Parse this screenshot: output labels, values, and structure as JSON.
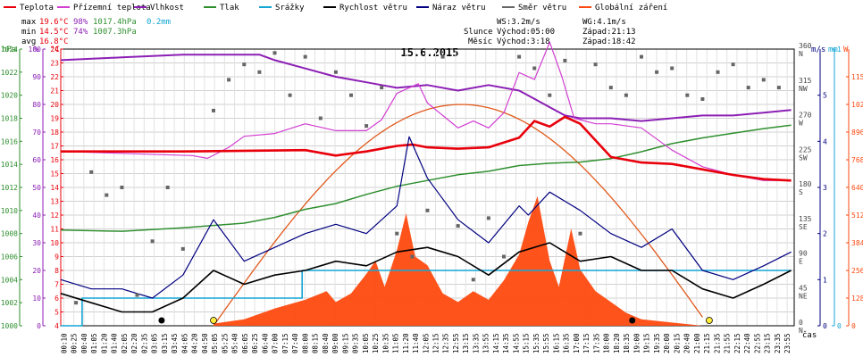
{
  "legend": [
    {
      "label": "Teplota",
      "color": "#e8000b"
    },
    {
      "label": "Přízemní teplota",
      "color": "#d23ed2"
    },
    {
      "label": "Vlhkost",
      "color": "#8c1fb5"
    },
    {
      "label": "Tlak",
      "color": "#2f8f2f"
    },
    {
      "label": "Srážky",
      "color": "#14a6d4"
    },
    {
      "label": "Rychlost větru",
      "color": "#000000"
    },
    {
      "label": "Náraz větru",
      "color": "#000080"
    },
    {
      "label": "Směr větru",
      "color": "#666666"
    },
    {
      "label": "Globální záření",
      "color": "#ff4a10"
    }
  ],
  "stats": {
    "max": {
      "label": "max",
      "temp": "19.6°C",
      "hum": "98%",
      "press": "1017.4hPa",
      "rain": "0.2mm"
    },
    "min": {
      "label": "min",
      "temp": "14.5°C",
      "hum": "74%",
      "press": "1007.3hPa"
    },
    "avg": {
      "label": "avg",
      "temp": "16.8°C"
    }
  },
  "wind_info": {
    "ws": "WS:3.2m/s",
    "wg": "WG:4.1m/s"
  },
  "sun_info": {
    "label": "Slunce",
    "rise": "Východ:05:00",
    "set": "Západ:21:13"
  },
  "moon_info": {
    "label": "Měsíc",
    "rise": "Východ:3:18",
    "set": "Západ:18:42"
  },
  "title": "15.6.2015",
  "axis_units": {
    "hpa": "hPa",
    "pct": "%",
    "degc": "°C",
    "ms": "m/s",
    "mm": "mm",
    "w": "W",
    "cas": "čas"
  },
  "chart_data": {
    "type": "line",
    "title": "15.6.2015",
    "x_labels": [
      "00:10",
      "00:25",
      "00:40",
      "01:05",
      "01:20",
      "01:40",
      "02:05",
      "02:20",
      "02:35",
      "03:05",
      "03:15",
      "03:45",
      "04:05",
      "04:20",
      "04:50",
      "05:05",
      "05:25",
      "05:40",
      "06:05",
      "06:25",
      "06:40",
      "07:00",
      "07:15",
      "07:40",
      "08:00",
      "08:15",
      "08:40",
      "09:00",
      "09:15",
      "09:35",
      "10:05",
      "10:25",
      "10:35",
      "11:05",
      "11:20",
      "11:40",
      "12:05",
      "12:15",
      "12:35",
      "12:55",
      "13:15",
      "13:35",
      "13:55",
      "14:15",
      "14:35",
      "14:55",
      "15:15",
      "15:35",
      "15:55",
      "16:15",
      "16:35",
      "17:00",
      "17:15",
      "17:35",
      "18:00",
      "18:20",
      "18:35",
      "19:00",
      "19:15",
      "19:35",
      "20:00",
      "20:15",
      "20:40",
      "21:00",
      "21:15",
      "21:35",
      "21:55",
      "22:15",
      "22:40",
      "22:55",
      "23:15",
      "23:35",
      "23:55"
    ],
    "axes": {
      "pressure_hpa": {
        "ylim": [
          1000,
          1024
        ],
        "ticks": [
          1000,
          1002,
          1004,
          1006,
          1008,
          1010,
          1012,
          1014,
          1016,
          1018,
          1020,
          1022,
          1024
        ]
      },
      "humidity_pct": {
        "ylim": [
          0,
          100
        ],
        "ticks": [
          0,
          10,
          20,
          30,
          40,
          50,
          60,
          70,
          80,
          90,
          100
        ]
      },
      "temperature_c": {
        "ylim": [
          4,
          24
        ],
        "ticks": [
          4,
          5,
          6,
          7,
          8,
          9,
          10,
          11,
          12,
          13,
          14,
          15,
          16,
          17,
          18,
          19,
          20,
          21,
          22,
          23,
          24
        ]
      },
      "wind_ms": {
        "ylim": [
          0,
          6
        ],
        "ticks": [
          0,
          1,
          2,
          3,
          4,
          5
        ]
      },
      "rain_mm": {
        "ylim": [
          0,
          1
        ],
        "ticks": [
          0,
          1
        ]
      },
      "radiation_w": {
        "ylim": [
          0,
          1280
        ],
        "ticks": [
          0,
          128,
          256,
          384,
          512,
          640,
          768,
          896,
          1024,
          1152
        ]
      },
      "wind_dir": {
        "ylim": [
          0,
          360
        ],
        "ticks": [
          0,
          45,
          90,
          135,
          180,
          225,
          270,
          315,
          360
        ],
        "tick_labels": [
          "N",
          "NE",
          "E",
          "SE",
          "S",
          "SW",
          "W",
          "NW",
          "N"
        ]
      }
    },
    "series": [
      {
        "name": "Teplota",
        "unit": "°C",
        "x_hours": [
          0,
          4,
          8,
          9,
          10,
          11,
          11.5,
          12,
          13,
          14,
          15,
          15.5,
          16,
          16.5,
          17,
          18,
          19,
          20,
          21,
          22,
          23,
          23.9
        ],
        "values": [
          16.6,
          16.6,
          16.7,
          16.3,
          16.6,
          17.0,
          17.1,
          16.9,
          16.8,
          16.9,
          17.6,
          18.8,
          18.4,
          19.1,
          18.6,
          16.2,
          15.8,
          15.7,
          15.3,
          14.9,
          14.6,
          14.5
        ]
      },
      {
        "name": "Přízemní teplota",
        "unit": "°C",
        "x_hours": [
          0,
          4.3,
          4.8,
          5.5,
          6,
          7,
          8,
          9,
          10,
          10.5,
          11,
          11.7,
          12,
          12.5,
          13,
          13.5,
          14,
          14.5,
          15,
          15.5,
          16,
          16.4,
          16.8,
          17.5,
          18,
          19,
          20,
          21,
          22,
          23,
          23.9
        ],
        "values": [
          16.6,
          16.3,
          16.1,
          16.9,
          17.7,
          17.9,
          18.6,
          18.1,
          18.1,
          18.9,
          20.8,
          21.5,
          20.1,
          19.2,
          18.3,
          18.8,
          18.3,
          19.4,
          22.3,
          21.8,
          24.5,
          22.0,
          19.0,
          18.6,
          18.6,
          18.3,
          16.7,
          15.5,
          14.9,
          14.5,
          14.5
        ]
      },
      {
        "name": "Vlhkost",
        "unit": "%",
        "x_hours": [
          0,
          2,
          4,
          6,
          6.5,
          7,
          8,
          9,
          10,
          10.5,
          11,
          12,
          13,
          14,
          15,
          15.5,
          16,
          16.5,
          17,
          18,
          19,
          20,
          21,
          22,
          23,
          23.9
        ],
        "values": [
          96,
          97,
          98,
          98,
          98,
          96,
          93,
          90,
          88,
          87,
          86,
          87,
          85,
          87,
          85,
          82,
          79,
          76,
          75,
          75,
          74,
          75,
          76,
          76,
          77,
          78
        ]
      },
      {
        "name": "Tlak",
        "unit": "hPa",
        "x_hours": [
          0,
          2,
          4,
          6,
          7,
          8,
          9,
          10,
          11,
          12,
          13,
          14,
          15,
          16,
          17,
          18,
          19,
          20,
          21,
          22,
          23,
          23.9
        ],
        "values": [
          1008.3,
          1008.2,
          1008.5,
          1008.9,
          1009.4,
          1010.1,
          1010.6,
          1011.4,
          1012.1,
          1012.6,
          1013.1,
          1013.4,
          1013.9,
          1014.1,
          1014.2,
          1014.5,
          1015.1,
          1015.8,
          1016.3,
          1016.7,
          1017.1,
          1017.4
        ]
      },
      {
        "name": "Srážky",
        "unit": "mm",
        "x_hours": [
          0,
          0.7,
          0.7,
          7.9,
          7.9,
          23.9
        ],
        "values": [
          0,
          0,
          0.1,
          0.1,
          0.2,
          0.2
        ]
      },
      {
        "name": "Rychlost větru",
        "unit": "m/s",
        "x_hours": [
          0,
          1,
          2,
          3,
          4,
          5,
          6,
          7,
          8,
          9,
          10,
          11,
          12,
          13,
          14,
          15,
          16,
          17,
          18,
          19,
          20,
          21,
          22,
          23,
          23.9
        ],
        "values": [
          0.7,
          0.5,
          0.3,
          0.3,
          0.6,
          1.2,
          0.9,
          1.1,
          1.2,
          1.4,
          1.3,
          1.6,
          1.7,
          1.5,
          1.1,
          1.6,
          1.8,
          1.4,
          1.5,
          1.2,
          1.2,
          0.8,
          0.6,
          0.9,
          1.2
        ]
      },
      {
        "name": "Náraz větru",
        "unit": "m/s",
        "x_hours": [
          0,
          1,
          2,
          3,
          4,
          5,
          6,
          7,
          8,
          9,
          10,
          11,
          11.4,
          12,
          13,
          14,
          15,
          15.3,
          16,
          17,
          18,
          19,
          20,
          21,
          22,
          23,
          23.9
        ],
        "values": [
          1.0,
          0.8,
          0.8,
          0.6,
          1.1,
          2.3,
          1.4,
          1.7,
          2.0,
          2.2,
          2.0,
          2.6,
          4.1,
          3.2,
          2.3,
          1.8,
          2.6,
          2.4,
          2.9,
          2.5,
          2.0,
          1.7,
          2.1,
          1.2,
          1.0,
          1.3,
          1.6
        ]
      },
      {
        "name": "Směr větru",
        "unit": "°",
        "x_hours": [
          0.5,
          1,
          1.5,
          2,
          2.5,
          3,
          3.5,
          4,
          5,
          5.5,
          6,
          6.5,
          7,
          7.5,
          8,
          8.5,
          9,
          9.5,
          10,
          10.5,
          11,
          11.5,
          12,
          12.5,
          13,
          13.5,
          14,
          14.5,
          15,
          15.5,
          16,
          16.5,
          17,
          17.5,
          18,
          18.5,
          19,
          19.5,
          20,
          20.5,
          21,
          21.5,
          22,
          22.5,
          23,
          23.5
        ],
        "values": [
          30,
          200,
          170,
          180,
          40,
          110,
          180,
          100,
          280,
          320,
          340,
          330,
          355,
          300,
          350,
          270,
          330,
          300,
          260,
          310,
          120,
          90,
          150,
          350,
          130,
          60,
          140,
          90,
          350,
          335,
          300,
          345,
          120,
          340,
          310,
          300,
          350,
          330,
          335,
          300,
          295,
          330,
          340,
          310,
          320,
          310
        ]
      },
      {
        "name": "Globální záření",
        "unit": "W/m²",
        "x_hours": [
          5,
          6,
          7,
          8,
          8.7,
          9,
          9.5,
          10,
          10.3,
          10.6,
          11,
          11.3,
          11.6,
          12,
          12.5,
          13,
          13.5,
          14,
          14.5,
          15,
          15.3,
          15.6,
          16,
          16.3,
          16.7,
          17,
          17.5,
          18,
          18.5,
          19,
          20,
          21
        ],
        "values": [
          10,
          30,
          80,
          120,
          160,
          110,
          150,
          240,
          300,
          180,
          350,
          520,
          320,
          280,
          150,
          110,
          160,
          120,
          210,
          330,
          480,
          600,
          300,
          180,
          450,
          260,
          160,
          110,
          60,
          30,
          15,
          0
        ]
      }
    ]
  }
}
